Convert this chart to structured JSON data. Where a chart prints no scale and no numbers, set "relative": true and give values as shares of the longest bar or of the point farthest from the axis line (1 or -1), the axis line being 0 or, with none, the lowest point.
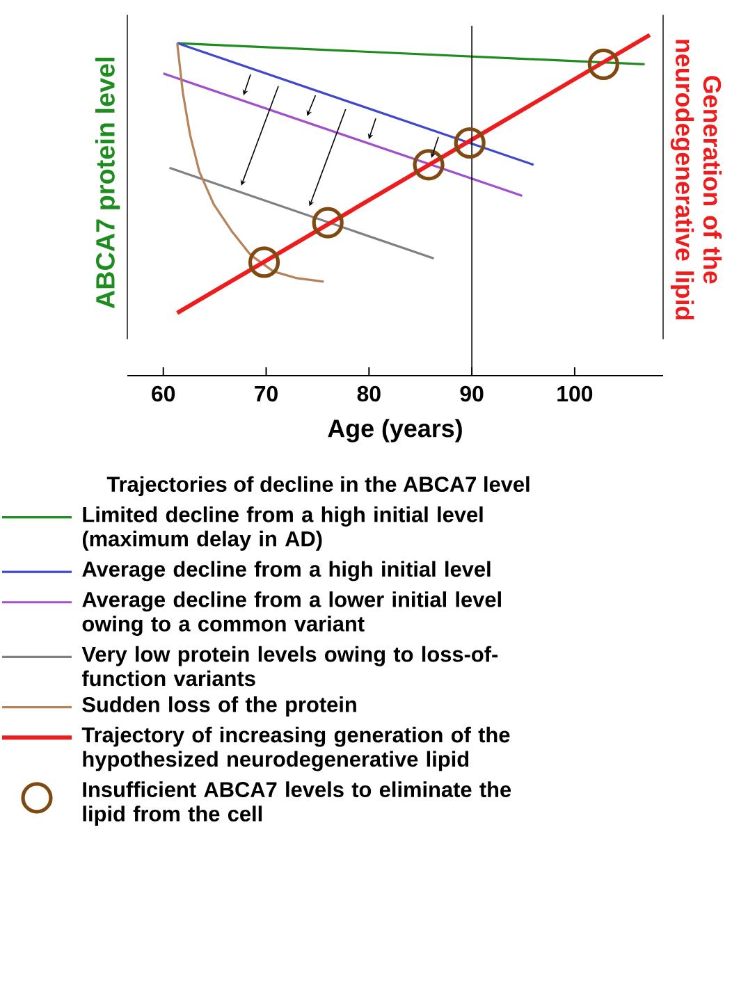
{
  "chart_data": {
    "type": "line",
    "relative": true,
    "xlabel": "Age (years)",
    "ylabel": "ABCA7 protein level",
    "y2label": "Generation of the neurodegenerative lipid",
    "xlim": [
      56.5,
      108.6
    ],
    "xticks": [
      60,
      70,
      80,
      90,
      100
    ],
    "legend": "bottom",
    "legend_title": "Trajectories of decline in the ABCA7 level",
    "marker": "none",
    "grid": false,
    "ref_lines": [
      {
        "axis": "x",
        "value": 90,
        "color": "#000000"
      }
    ],
    "series": [
      {
        "name": "Limited decline from a high initial level (maximum delay in AD)",
        "color": "#1e8c1e",
        "x": [
          61.35,
          106.8
        ],
        "values": [
          0.976,
          0.914
        ]
      },
      {
        "name": "Average decline from a high initial level",
        "color": "#3f48cc",
        "x": [
          61.35,
          96.0
        ],
        "values": [
          0.976,
          0.619
        ]
      },
      {
        "name": "Average decline from a lower initial level owing to a common variant",
        "color": "#a050c8",
        "x": [
          60.0,
          94.9
        ],
        "values": [
          0.887,
          0.528
        ]
      },
      {
        "name": "Very low protein levels owing to loss-of-function variants",
        "color": "#808080",
        "x": [
          60.6,
          86.3
        ],
        "values": [
          0.61,
          0.344
        ]
      },
      {
        "name": "Sudden loss of the protein",
        "color": "#b5825a",
        "x": [
          61.35,
          61.9,
          62.6,
          63.5,
          64.9,
          66.7,
          68.5,
          70.7,
          73.0,
          75.6
        ],
        "values": [
          0.976,
          0.83,
          0.707,
          0.599,
          0.503,
          0.422,
          0.354,
          0.306,
          0.286,
          0.276
        ]
      },
      {
        "name": "Trajectory of increasing generation of the hypothesized neurodegenerative lipid",
        "color": "#ee1c1c",
        "x": [
          61.35,
          107.3
        ],
        "values": [
          0.184,
          1.0
        ]
      },
      {
        "name": "Insufficient ABCA7 levels to eliminate the lipid from the cell",
        "type": "scatter",
        "marker": "circle",
        "color": "#7f4a12",
        "x": [
          69.8,
          76.0,
          85.8,
          89.8,
          102.8
        ],
        "values": [
          0.333,
          0.449,
          0.619,
          0.683,
          0.914
        ]
      }
    ]
  }
}
